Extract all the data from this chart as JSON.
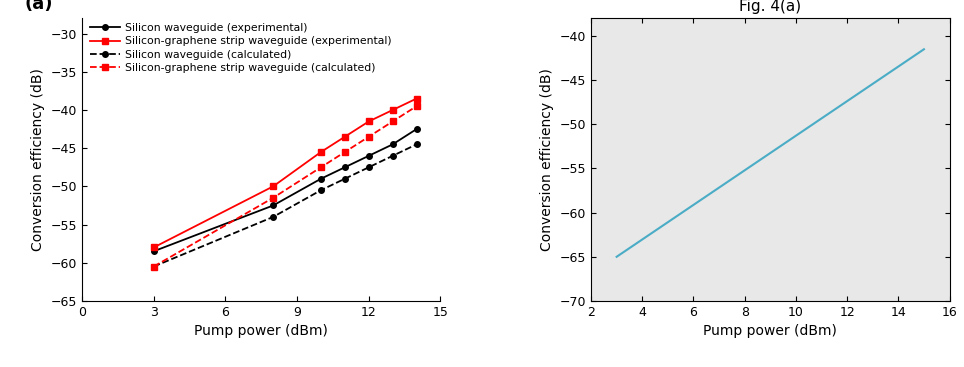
{
  "left": {
    "panel_label": "(a)",
    "xlabel": "Pump power (dBm)",
    "ylabel": "Conversion efficiency (dB)",
    "xlim": [
      0,
      15
    ],
    "ylim": [
      -65,
      -28
    ],
    "xticks": [
      0,
      3,
      6,
      9,
      12,
      15
    ],
    "yticks": [
      -65,
      -60,
      -55,
      -50,
      -45,
      -40,
      -35,
      -30
    ],
    "series": [
      {
        "label": "Silicon waveguide (experimental)",
        "color": "black",
        "linestyle": "-",
        "marker": "o",
        "markersize": 4,
        "x": [
          3,
          8,
          10,
          11,
          12,
          13,
          14
        ],
        "y": [
          -58.5,
          -52.5,
          -49.0,
          -47.5,
          -46.0,
          -44.5,
          -42.5
        ]
      },
      {
        "label": "Silicon-graphene strip waveguide (experimental)",
        "color": "red",
        "linestyle": "-",
        "marker": "s",
        "markersize": 4,
        "x": [
          3,
          8,
          10,
          11,
          12,
          13,
          14
        ],
        "y": [
          -58.0,
          -50.0,
          -45.5,
          -43.5,
          -41.5,
          -40.0,
          -38.5
        ]
      },
      {
        "label": "Silicon waveguide (calculated)",
        "color": "black",
        "linestyle": "--",
        "marker": "o",
        "markersize": 4,
        "x": [
          3,
          8,
          10,
          11,
          12,
          13,
          14
        ],
        "y": [
          -60.5,
          -54.0,
          -50.5,
          -49.0,
          -47.5,
          -46.0,
          -44.5
        ]
      },
      {
        "label": "Silicon-graphene strip waveguide (calculated)",
        "color": "red",
        "linestyle": "--",
        "marker": "s",
        "markersize": 4,
        "x": [
          3,
          8,
          10,
          11,
          12,
          13,
          14
        ],
        "y": [
          -60.5,
          -51.5,
          -47.5,
          -45.5,
          -43.5,
          -41.5,
          -39.5
        ]
      }
    ]
  },
  "right": {
    "title": "Fig. 4(a)",
    "xlabel": "Pump power (dBm)",
    "ylabel": "Conversion efficiency (dB)",
    "xlim": [
      2,
      16
    ],
    "ylim": [
      -70,
      -38
    ],
    "xticks": [
      2,
      4,
      6,
      8,
      10,
      12,
      14,
      16
    ],
    "yticks": [
      -70,
      -65,
      -60,
      -55,
      -50,
      -45,
      -40
    ],
    "line_color": "#4bacc6",
    "line_x": [
      3.0,
      15.0
    ],
    "line_y": [
      -65.0,
      -41.5
    ],
    "background_color": "#e8e8e8"
  }
}
